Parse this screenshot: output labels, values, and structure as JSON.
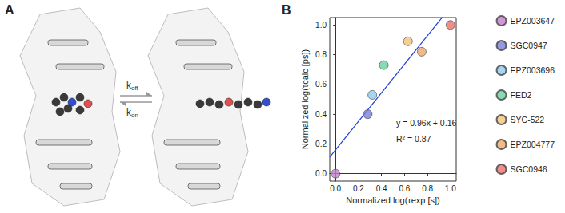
{
  "panel_a": {
    "label": "A",
    "rates": [
      "koff",
      "kon"
    ]
  },
  "chart_data": {
    "type": "scatter",
    "panel": "B",
    "xlabel": "Normalized log(τexp [s])",
    "ylabel": "Normalized log(τcalc [ps])",
    "xlim": [
      -0.05,
      1.05
    ],
    "ylim": [
      -0.05,
      1.05
    ],
    "xticks": [
      {
        "value": 0,
        "label": "0.0"
      },
      {
        "value": 0.2,
        "label": "0.2"
      },
      {
        "value": 0.4,
        "label": "0.4"
      },
      {
        "value": 0.6,
        "label": "0.6"
      },
      {
        "value": 0.8,
        "label": "0.8"
      },
      {
        "value": 1,
        "label": "1.0"
      }
    ],
    "yticks": [
      {
        "value": 0,
        "label": "0.0"
      },
      {
        "value": 0.2,
        "label": "0.2"
      },
      {
        "value": 0.4,
        "label": "0.4"
      },
      {
        "value": 0.6,
        "label": "0.6"
      },
      {
        "value": 0.8,
        "label": "0.8"
      },
      {
        "value": 1,
        "label": "1.0"
      }
    ],
    "grid": false,
    "legend": "right",
    "series": [
      {
        "name": "EPZ003647",
        "color": "#c47fcc",
        "x": [
          0.0
        ],
        "values": [
          0.0
        ]
      },
      {
        "name": "SGC0947",
        "color": "#7b80d4",
        "x": [
          0.28
        ],
        "values": [
          0.4
        ]
      },
      {
        "name": "EPZ003696",
        "color": "#8ecbee",
        "x": [
          0.32
        ],
        "values": [
          0.53
        ]
      },
      {
        "name": "FED2",
        "color": "#6dcfa2",
        "x": [
          0.42
        ],
        "values": [
          0.73
        ]
      },
      {
        "name": "SYC-522",
        "color": "#f2c47c",
        "x": [
          0.63
        ],
        "values": [
          0.89
        ]
      },
      {
        "name": "EPZ004777",
        "color": "#f0a96c",
        "x": [
          0.75
        ],
        "values": [
          0.82
        ]
      },
      {
        "name": "SGC0946",
        "color": "#ee6f6a",
        "x": [
          1.0
        ],
        "values": [
          1.0
        ]
      }
    ],
    "fit": {
      "slope": 0.96,
      "intercept": 0.16,
      "color": "#1f3fd8"
    },
    "annotations": [
      "y = 0.96x + 0.16",
      "R² = 0.87"
    ]
  }
}
